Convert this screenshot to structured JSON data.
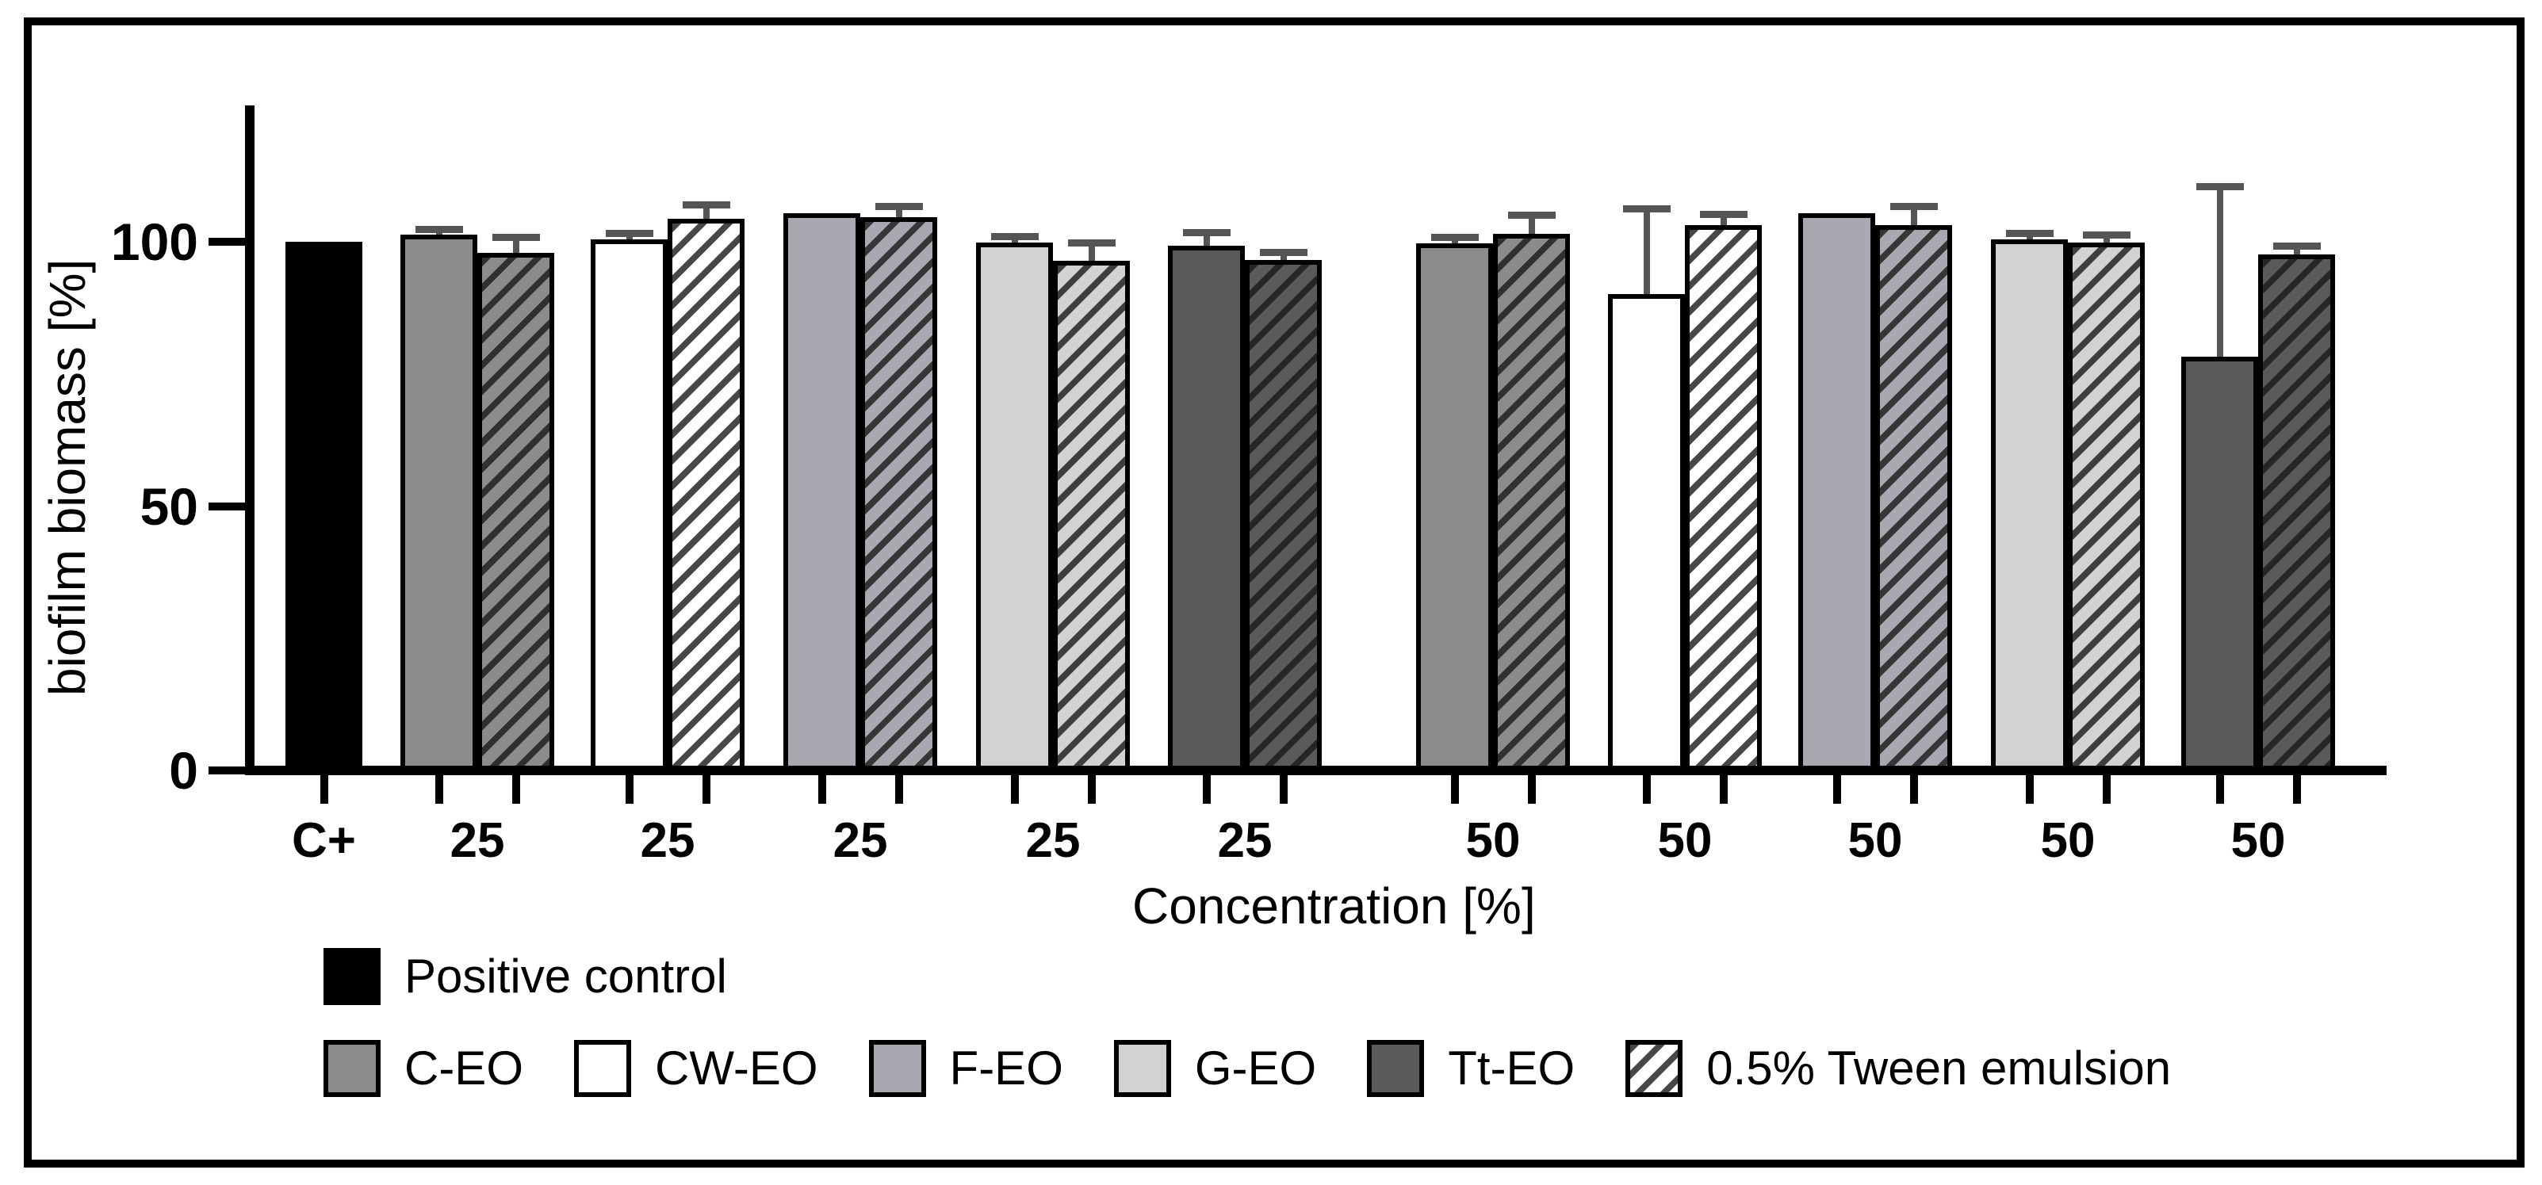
{
  "figure": {
    "y_axis_title": "biofilm biomass [%]",
    "x_axis_title": "Concentration [%]",
    "y_tick_labels": [
      "100",
      "50",
      "0"
    ]
  },
  "legend": {
    "row1": [
      {
        "label": "Positive control",
        "swatch": "black",
        "hatched": false
      }
    ],
    "row2": [
      {
        "label": "C-EO",
        "swatch": "c_eo",
        "hatched": false
      },
      {
        "label": "CW-EO",
        "swatch": "cw_eo",
        "hatched": false
      },
      {
        "label": "F-EO",
        "swatch": "f_eo",
        "hatched": false
      },
      {
        "label": "G-EO",
        "swatch": "g_eo",
        "hatched": false
      },
      {
        "label": "Tt-EO",
        "swatch": "tt_eo",
        "hatched": false
      },
      {
        "label": "0.5% Tween emulsion",
        "swatch": "cw_eo",
        "hatched": true
      }
    ]
  },
  "colors": {
    "black": "#000000",
    "c_eo": "#8b8b8b",
    "cw_eo": "#ffffff",
    "f_eo": "#a8a8b0",
    "g_eo": "#d2d2d2",
    "tt_eo": "#5a5a5a",
    "error_bar": "#555555",
    "axis": "#000000"
  },
  "chart_data": {
    "type": "bar",
    "title": "",
    "xlabel": "Concentration [%]",
    "ylabel": "biofilm biomass [%]",
    "ylim": [
      0,
      125
    ],
    "yticks": [
      0,
      50,
      100
    ],
    "grid": false,
    "legend_position": "bottom",
    "error_bars": "+SD only, upward",
    "groups": [
      {
        "x_label": "C+",
        "bars": [
          {
            "series": "Positive control",
            "value": 100.0,
            "sd": 0,
            "fill": "black",
            "hatched": false
          }
        ]
      },
      {
        "x_label": "25",
        "bars": [
          {
            "series": "C-EO",
            "value": 101.4,
            "sd": 1.0,
            "fill": "c_eo",
            "hatched": false
          },
          {
            "series": "C-EO 0.5% Tween emulsion",
            "value": 97.9,
            "sd": 3.0,
            "fill": "c_eo",
            "hatched": true
          }
        ]
      },
      {
        "x_label": "25",
        "bars": [
          {
            "series": "CW-EO",
            "value": 100.4,
            "sd": 1.3,
            "fill": "cw_eo",
            "hatched": false
          },
          {
            "series": "CW-EO 0.5% Tween emulsion",
            "value": 104.3,
            "sd": 2.8,
            "fill": "cw_eo",
            "hatched": true
          }
        ]
      },
      {
        "x_label": "25",
        "bars": [
          {
            "series": "F-EO",
            "value": 105.4,
            "sd": 0,
            "fill": "f_eo",
            "hatched": false
          },
          {
            "series": "F-EO 0.5% Tween emulsion",
            "value": 104.7,
            "sd": 2.0,
            "fill": "f_eo",
            "hatched": true
          }
        ]
      },
      {
        "x_label": "25",
        "bars": [
          {
            "series": "G-EO",
            "value": 99.8,
            "sd": 1.3,
            "fill": "g_eo",
            "hatched": false
          },
          {
            "series": "G-EO 0.5% Tween emulsion",
            "value": 96.4,
            "sd": 3.5,
            "fill": "g_eo",
            "hatched": true
          }
        ]
      },
      {
        "x_label": "25",
        "bars": [
          {
            "series": "Tt-EO",
            "value": 99.2,
            "sd": 2.6,
            "fill": "tt_eo",
            "hatched": false
          },
          {
            "series": "Tt-EO 0.5% Tween emulsion",
            "value": 96.5,
            "sd": 1.5,
            "fill": "tt_eo",
            "hatched": true
          }
        ]
      },
      {
        "x_label": "50",
        "bars": [
          {
            "series": "C-EO",
            "value": 99.7,
            "sd": 1.2,
            "fill": "c_eo",
            "hatched": false
          },
          {
            "series": "C-EO 0.5% Tween emulsion",
            "value": 101.5,
            "sd": 3.6,
            "fill": "c_eo",
            "hatched": true
          }
        ]
      },
      {
        "x_label": "50",
        "bars": [
          {
            "series": "CW-EO",
            "value": 90.1,
            "sd": 16.2,
            "fill": "cw_eo",
            "hatched": false
          },
          {
            "series": "CW-EO 0.5% Tween emulsion",
            "value": 103.2,
            "sd": 2.1,
            "fill": "cw_eo",
            "hatched": true
          }
        ]
      },
      {
        "x_label": "50",
        "bars": [
          {
            "series": "F-EO",
            "value": 105.4,
            "sd": 0,
            "fill": "f_eo",
            "hatched": false
          },
          {
            "series": "F-EO 0.5% Tween emulsion",
            "value": 103.1,
            "sd": 3.7,
            "fill": "f_eo",
            "hatched": true
          }
        ]
      },
      {
        "x_label": "50",
        "bars": [
          {
            "series": "G-EO",
            "value": 100.4,
            "sd": 1.2,
            "fill": "g_eo",
            "hatched": false
          },
          {
            "series": "G-EO 0.5% Tween emulsion",
            "value": 99.8,
            "sd": 1.5,
            "fill": "g_eo",
            "hatched": true
          }
        ]
      },
      {
        "x_label": "50",
        "bars": [
          {
            "series": "Tt-EO",
            "value": 78.3,
            "sd": 32.2,
            "fill": "tt_eo",
            "hatched": false
          },
          {
            "series": "Tt-EO 0.5% Tween emulsion",
            "value": 97.6,
            "sd": 1.6,
            "fill": "tt_eo",
            "hatched": true
          }
        ]
      }
    ]
  }
}
